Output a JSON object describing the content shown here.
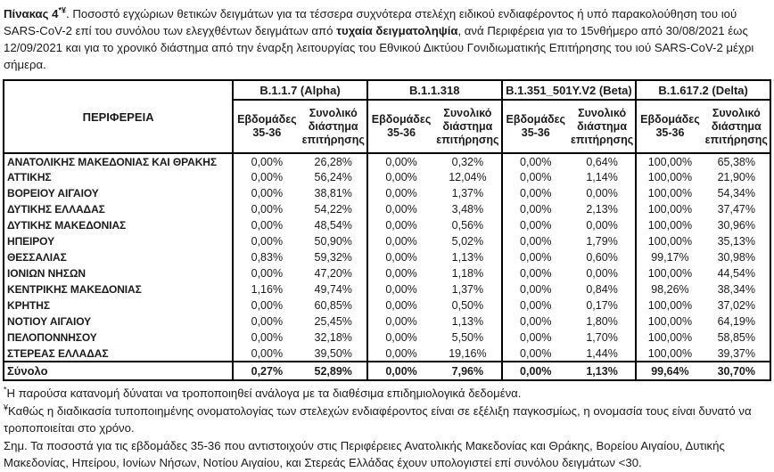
{
  "title": {
    "prefix_bold": "Πίνακας 4",
    "sup": "*¥",
    "part1": ". Ποσοστό εγχώριων θετικών δειγμάτων για τα τέσσερα συχνότερα στελέχη ειδικού ενδιαφέροντος ή υπό παρακολούθηση του ιού SARS-CoV-2 επί του συνόλου των ελεγχθέντων δειγμάτων από ",
    "bold_phrase": "τυχαία δειγματοληψία",
    "part2": ", ανά Περιφέρεια για το 15νθήμερο από 30/08/2021 έως 12/09/2021 και για το χρονικό διάστημα από την έναρξη λειτουργίας του Εθνικού Δικτύου Γονιδιωματικής Επιτήρησης του ιού SARS-CoV-2 μέχρι σήμερα."
  },
  "table": {
    "region_header": "ΠΕΡΙΦΕΡΕΙΑ",
    "variants": [
      {
        "name": "B.1.1.7 (Alpha)"
      },
      {
        "name": "B.1.1.318"
      },
      {
        "name": "B.1.351_501Y.V2 (Beta)"
      },
      {
        "name": "B.1.617.2 (Delta)"
      }
    ],
    "subheader": {
      "weeks": "Εβδομάδες 35-36",
      "period": "Συνολικό διάστημα επιτήρησης"
    },
    "rows": [
      {
        "region": "ΑΝΑΤΟΛΙΚΗΣ ΜΑΚΕΔΟΝΙΑΣ ΚΑΙ ΘΡΑΚΗΣ",
        "values": [
          "0,00%",
          "26,28%",
          "0,00%",
          "0,32%",
          "0,00%",
          "0,64%",
          "100,00%",
          "65,38%"
        ]
      },
      {
        "region": "ΑΤΤΙΚΗΣ",
        "values": [
          "0,00%",
          "56,24%",
          "0,00%",
          "12,04%",
          "0,00%",
          "1,14%",
          "100,00%",
          "21,90%"
        ]
      },
      {
        "region": "ΒΟΡΕΙΟΥ ΑΙΓΑΙΟΥ",
        "values": [
          "0,00%",
          "38,81%",
          "0,00%",
          "1,37%",
          "0,00%",
          "0,00%",
          "100,00%",
          "54,34%"
        ]
      },
      {
        "region": "ΔΥΤΙΚΗΣ ΕΛΛΑΔΑΣ",
        "values": [
          "0,00%",
          "54,22%",
          "0,00%",
          "3,48%",
          "0,00%",
          "2,13%",
          "100,00%",
          "37,47%"
        ]
      },
      {
        "region": "ΔΥΤΙΚΗΣ ΜΑΚΕΔΟΝΙΑΣ",
        "values": [
          "0,00%",
          "48,54%",
          "0,00%",
          "0,56%",
          "0,00%",
          "0,00%",
          "100,00%",
          "30,96%"
        ]
      },
      {
        "region": "ΗΠΕΙΡΟΥ",
        "values": [
          "0,00%",
          "50,90%",
          "0,00%",
          "5,02%",
          "0,00%",
          "1,79%",
          "100,00%",
          "35,13%"
        ]
      },
      {
        "region": "ΘΕΣΣΑΛΙΑΣ",
        "values": [
          "0,83%",
          "59,32%",
          "0,00%",
          "1,13%",
          "0,00%",
          "0,60%",
          "99,17%",
          "30,98%"
        ]
      },
      {
        "region": "ΙΟΝΙΩΝ ΝΗΣΩΝ",
        "values": [
          "0,00%",
          "47,20%",
          "0,00%",
          "1,18%",
          "0,00%",
          "0,00%",
          "100,00%",
          "44,54%"
        ]
      },
      {
        "region": "ΚΕΝΤΡΙΚΗΣ ΜΑΚΕΔΟΝΙΑΣ",
        "values": [
          "1,16%",
          "49,74%",
          "0,00%",
          "1,37%",
          "0,00%",
          "0,84%",
          "98,26%",
          "38,34%"
        ]
      },
      {
        "region": "ΚΡΗΤΗΣ",
        "values": [
          "0,00%",
          "60,85%",
          "0,00%",
          "0,50%",
          "0,00%",
          "0,17%",
          "100,00%",
          "37,02%"
        ]
      },
      {
        "region": "ΝΟΤΙΟΥ ΑΙΓΑΙΟΥ",
        "values": [
          "0,00%",
          "25,45%",
          "0,00%",
          "1,13%",
          "0,00%",
          "1,80%",
          "100,00%",
          "64,19%"
        ]
      },
      {
        "region": "ΠΕΛΟΠΟΝΝΗΣΟΥ",
        "values": [
          "0,00%",
          "32,18%",
          "0,00%",
          "5,50%",
          "0,00%",
          "1,70%",
          "100,00%",
          "58,85%"
        ]
      },
      {
        "region": "ΣΤΕΡΕΑΣ ΕΛΛΑΔΑΣ",
        "values": [
          "0,00%",
          "39,50%",
          "0,00%",
          "19,16%",
          "0,00%",
          "1,44%",
          "100,00%",
          "39,37%"
        ]
      }
    ],
    "total": {
      "region": "Σύνολο",
      "values": [
        "0,27%",
        "52,89%",
        "0,00%",
        "7,96%",
        "0,00%",
        "1,13%",
        "99,64%",
        "30,70%"
      ]
    }
  },
  "footnotes": [
    {
      "marker": "*",
      "text": "Η παρούσα κατανομή δύναται να τροποποιηθεί ανάλογα με τα διαθέσιμα επιδημιολογικά δεδομένα."
    },
    {
      "marker": "¥",
      "text": "Καθώς η διαδικασία τυποποιημένης ονοματολογίας των στελεχών ενδιαφέροντος είναι σε εξέλιξη παγκοσμίως, η ονομασία τους είναι δυνατό να τροποποιείται στο χρόνο."
    },
    {
      "marker": "",
      "text": "Σημ. Τα ποσοστά για τις εβδομάδες 35-36 που αντιστοιχούν στις Περιφέρειες Ανατολικής Μακεδονίας και Θράκης, Βορείου Αιγαίου, Δυτικής Μακεδονίας, Ηπείρου, Ιονίων Νήσων, Νοτίου Αιγαίου, και Στερεάς Ελλάδας έχουν υπολογιστεί επί συνόλου δειγμάτων <30."
    }
  ]
}
